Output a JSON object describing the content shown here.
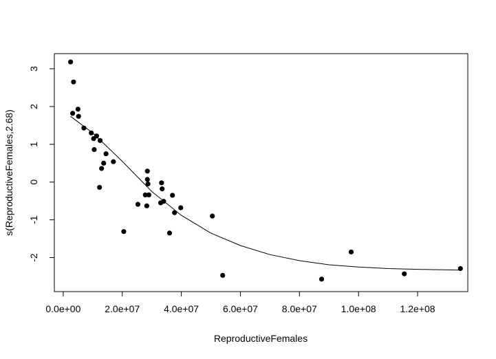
{
  "chart_data": {
    "type": "scatter",
    "xlabel": "ReproductiveFemales",
    "ylabel": "s(ReproductiveFemales,2.68)",
    "xlim": [
      -3000000,
      137000000
    ],
    "ylim": [
      -2.9,
      3.4
    ],
    "x_ticks": [
      {
        "value": 0,
        "label": "0.0e+00"
      },
      {
        "value": 20000000,
        "label": "2.0e+07"
      },
      {
        "value": 40000000,
        "label": "4.0e+07"
      },
      {
        "value": 60000000,
        "label": "6.0e+07"
      },
      {
        "value": 80000000,
        "label": "8.0e+07"
      },
      {
        "value": 100000000,
        "label": "1.0e+08"
      },
      {
        "value": 120000000,
        "label": "1.2e+08"
      }
    ],
    "y_ticks": [
      {
        "value": -2,
        "label": "-2"
      },
      {
        "value": -1,
        "label": "-1"
      },
      {
        "value": 0,
        "label": "0"
      },
      {
        "value": 1,
        "label": "1"
      },
      {
        "value": 2,
        "label": "2"
      },
      {
        "value": 3,
        "label": "3"
      }
    ],
    "grid": false,
    "points": [
      {
        "x": 2500000,
        "y": 3.18
      },
      {
        "x": 3500000,
        "y": 2.65
      },
      {
        "x": 3200000,
        "y": 1.82
      },
      {
        "x": 5000000,
        "y": 1.93
      },
      {
        "x": 5200000,
        "y": 1.74
      },
      {
        "x": 7000000,
        "y": 1.43
      },
      {
        "x": 9500000,
        "y": 1.3
      },
      {
        "x": 10300000,
        "y": 1.15
      },
      {
        "x": 11300000,
        "y": 1.22
      },
      {
        "x": 12500000,
        "y": 1.1
      },
      {
        "x": 10500000,
        "y": 0.86
      },
      {
        "x": 14500000,
        "y": 0.75
      },
      {
        "x": 13700000,
        "y": 0.5
      },
      {
        "x": 13000000,
        "y": 0.36
      },
      {
        "x": 17000000,
        "y": 0.54
      },
      {
        "x": 12300000,
        "y": -0.14
      },
      {
        "x": 20500000,
        "y": -1.31
      },
      {
        "x": 25300000,
        "y": -0.59
      },
      {
        "x": 27800000,
        "y": -0.34
      },
      {
        "x": 28300000,
        "y": -0.63
      },
      {
        "x": 28500000,
        "y": 0.29
      },
      {
        "x": 28500000,
        "y": 0.07
      },
      {
        "x": 28700000,
        "y": -0.05
      },
      {
        "x": 29000000,
        "y": -0.34
      },
      {
        "x": 33300000,
        "y": -0.02
      },
      {
        "x": 33500000,
        "y": -0.18
      },
      {
        "x": 33000000,
        "y": -0.55
      },
      {
        "x": 34000000,
        "y": -0.51
      },
      {
        "x": 36000000,
        "y": -1.35
      },
      {
        "x": 37000000,
        "y": -0.35
      },
      {
        "x": 37700000,
        "y": -0.81
      },
      {
        "x": 39800000,
        "y": -0.68
      },
      {
        "x": 50500000,
        "y": -0.9
      },
      {
        "x": 54000000,
        "y": -2.47
      },
      {
        "x": 87500000,
        "y": -2.57
      },
      {
        "x": 97500000,
        "y": -1.85
      },
      {
        "x": 115500000,
        "y": -2.43
      },
      {
        "x": 134500000,
        "y": -2.29
      }
    ],
    "smooth_line": {
      "x": [
        2500000,
        10000000,
        20000000,
        30000000,
        40000000,
        50000000,
        60000000,
        70000000,
        80000000,
        90000000,
        100000000,
        110000000,
        120000000,
        134500000
      ],
      "y": [
        1.74,
        1.3,
        0.55,
        -0.25,
        -0.88,
        -1.35,
        -1.68,
        -1.92,
        -2.08,
        -2.19,
        -2.25,
        -2.29,
        -2.31,
        -2.33
      ]
    }
  }
}
